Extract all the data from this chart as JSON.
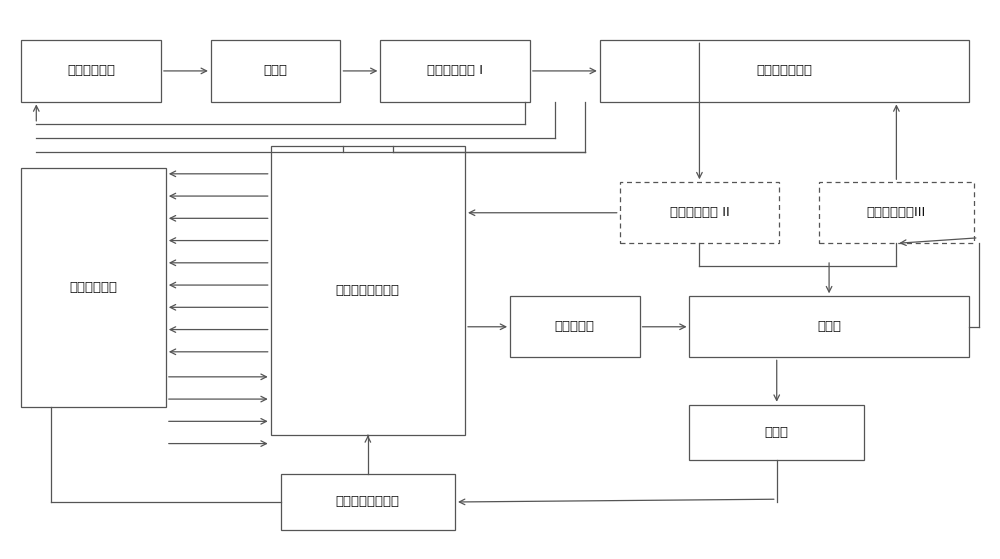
{
  "bg_color": "#ffffff",
  "border_color": "#555555",
  "line_color": "#555555",
  "text_color": "#111111",
  "font_size": 9.5,
  "blocks": {
    "磁控管调制器": [
      0.02,
      0.82,
      0.14,
      0.11
    ],
    "磁控管": [
      0.21,
      0.82,
      0.13,
      0.11
    ],
    "微波检测电路 I": [
      0.38,
      0.82,
      0.15,
      0.11
    ],
    "反馈式微波系统": [
      0.6,
      0.82,
      0.37,
      0.11
    ],
    "微波检测电路 II": [
      0.62,
      0.565,
      0.16,
      0.11
    ],
    "微波检测电路III": [
      0.82,
      0.565,
      0.155,
      0.11
    ],
    "电子枪调制器": [
      0.02,
      0.27,
      0.145,
      0.43
    ],
    "数字信号处理系统": [
      0.27,
      0.22,
      0.195,
      0.52
    ],
    "栅控电子枪": [
      0.51,
      0.36,
      0.13,
      0.11
    ],
    "加速管": [
      0.69,
      0.36,
      0.28,
      0.11
    ],
    "自动剂量控制系统": [
      0.28,
      0.05,
      0.175,
      0.1
    ],
    "治疗头": [
      0.69,
      0.175,
      0.175,
      0.1
    ]
  }
}
